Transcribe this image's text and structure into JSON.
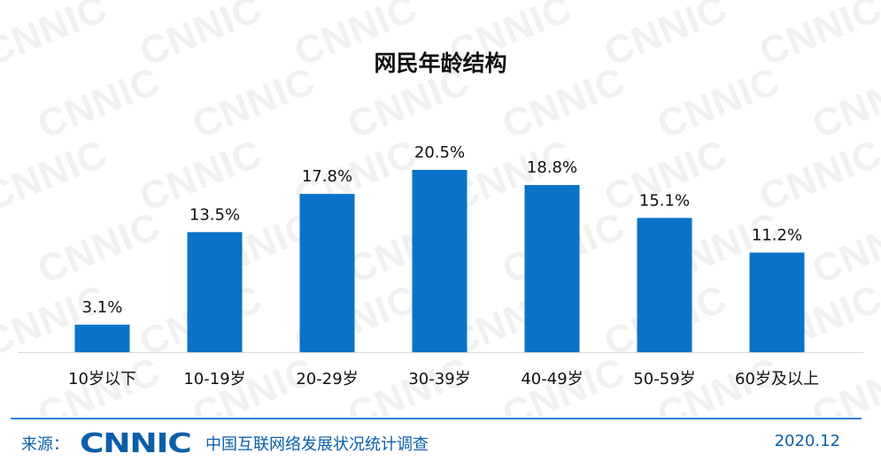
{
  "title": "网民年龄结构",
  "watermark_text": "CNNIC",
  "footer": {
    "source_label": "来源：",
    "logo_text": "CNNIC",
    "survey_name": "中国互联网络发展状况统计调查",
    "date": "2020.12"
  },
  "colors": {
    "bar": "#0a72c8",
    "accent": "#0b5fa8",
    "watermark": "#f1f1f1"
  },
  "chart_data": {
    "type": "bar",
    "title": "网民年龄结构",
    "categories": [
      "10岁以下",
      "10-19岁",
      "20-29岁",
      "30-39岁",
      "40-49岁",
      "50-59岁",
      "60岁及以上"
    ],
    "values": [
      3.1,
      13.5,
      17.8,
      20.5,
      18.8,
      15.1,
      11.2
    ],
    "value_labels": [
      "3.1%",
      "13.5%",
      "17.8%",
      "20.5%",
      "18.8%",
      "15.1%",
      "11.2%"
    ],
    "unit": "%",
    "xlabel": "",
    "ylabel": "",
    "ylim": [
      0,
      20.5
    ],
    "grid": false,
    "legend": "none"
  }
}
